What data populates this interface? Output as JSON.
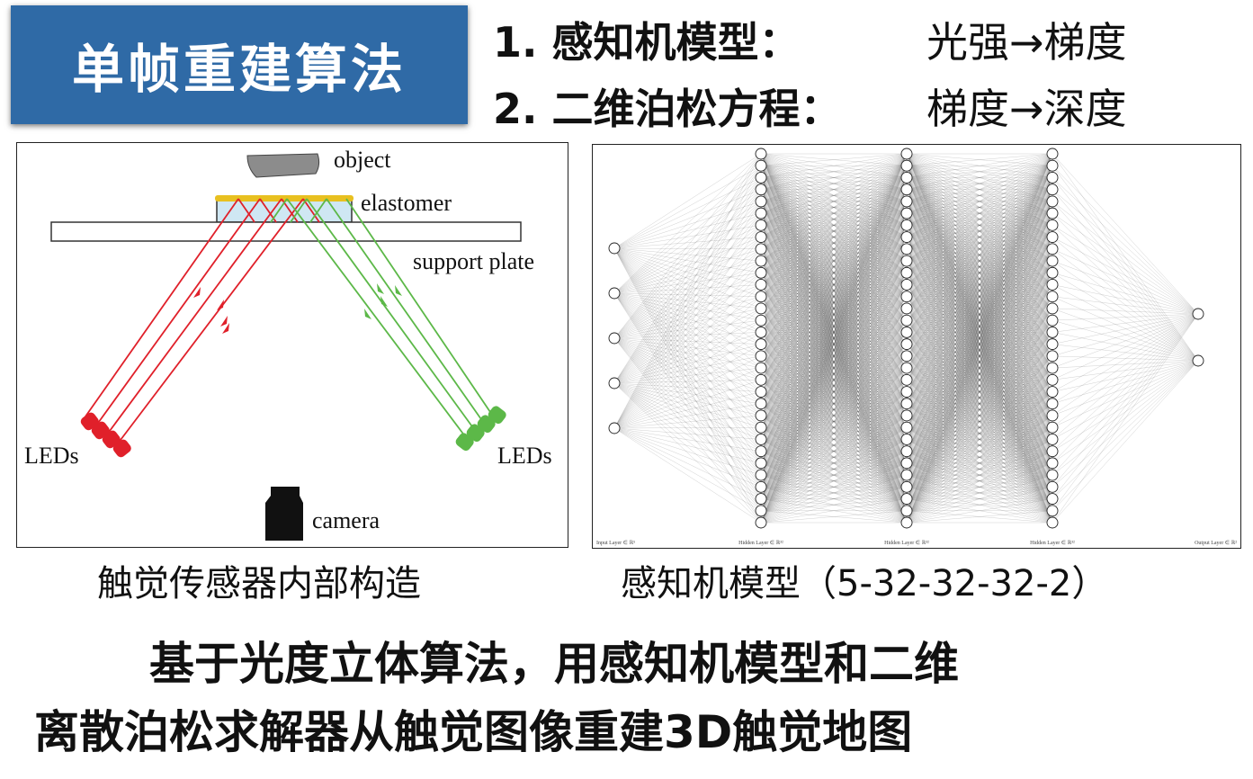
{
  "title": "单帧重建算法",
  "steps": [
    {
      "number": "1.",
      "label": "感知机模型：",
      "result": "光强→梯度"
    },
    {
      "number": "2.",
      "label": "二维泊松方程：",
      "result": "梯度→深度"
    }
  ],
  "sensor_diagram": {
    "labels": {
      "object": "object",
      "elastomer": "elastomer",
      "support_plate": "support plate",
      "leds_left": "LEDs",
      "leds_right": "LEDs",
      "camera": "camera"
    },
    "colors": {
      "red_light": "#e0202a",
      "green_light": "#5cb848",
      "elastomer_top": "#e8c020",
      "elastomer_fill": "#cfe7f3",
      "object_fill": "#8c8c8c"
    },
    "caption": "触觉传感器内部构造"
  },
  "network": {
    "layer_sizes": [
      5,
      32,
      32,
      32,
      2
    ],
    "layer_labels": [
      "Input Layer ∈ ℝ⁵",
      "Hidden Layer ∈ ℝ³²",
      "Hidden Layer ∈ ℝ³²",
      "Hidden Layer ∈ ℝ³²",
      "Output Layer ∈ ℝ²"
    ],
    "caption": "感知机模型（5-32-32-32-2）"
  },
  "summary": {
    "line1": "基于光度立体算法，用感知机模型和二维",
    "line2": "离散泊松求解器从触觉图像重建3D触觉地图"
  }
}
